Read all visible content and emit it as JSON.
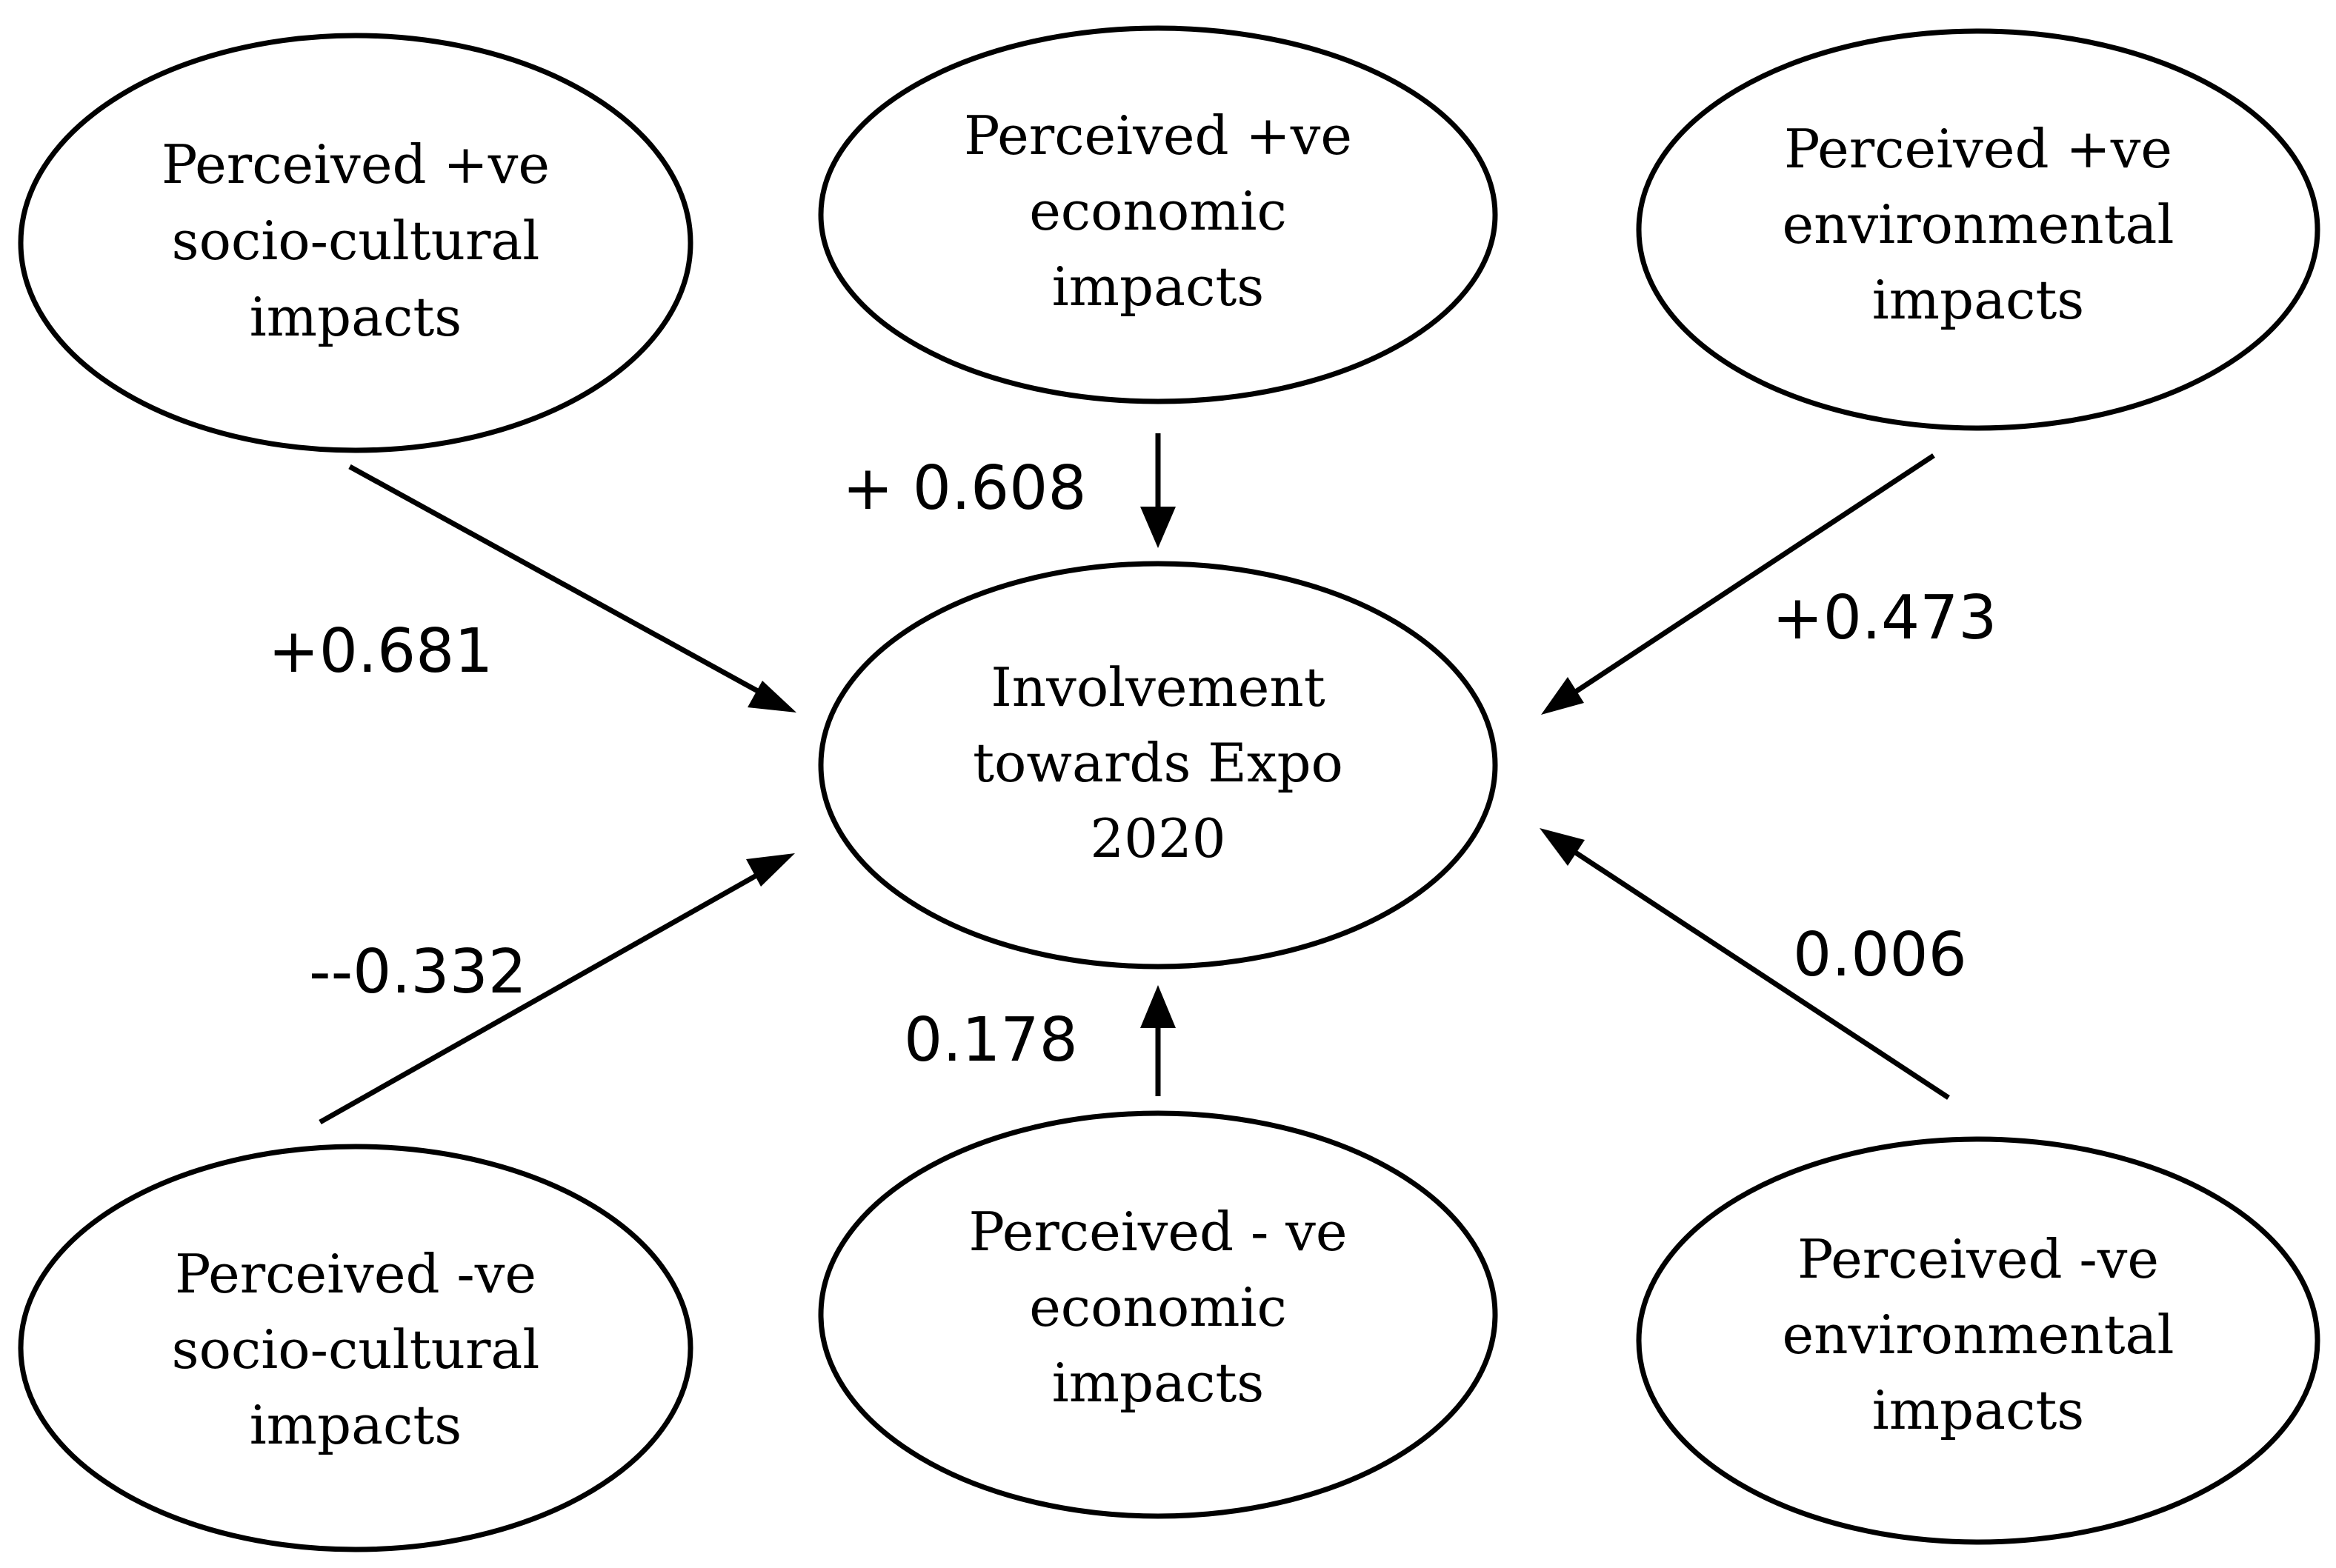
{
  "nodes": {
    "pos_socio": {
      "lines": [
        "Perceived +ve",
        "socio-cultural",
        "impacts"
      ]
    },
    "pos_econ": {
      "lines": [
        "Perceived +ve",
        "economic",
        "impacts"
      ]
    },
    "pos_env": {
      "lines": [
        "Perceived +ve",
        "environmental",
        "impacts"
      ]
    },
    "center": {
      "lines": [
        "Involvement",
        "towards Expo",
        "2020"
      ]
    },
    "neg_socio": {
      "lines": [
        "Perceived -ve",
        "socio-cultural",
        "impacts"
      ]
    },
    "neg_econ": {
      "lines": [
        "Perceived - ve",
        "economic",
        "impacts"
      ]
    },
    "neg_env": {
      "lines": [
        "Perceived -ve",
        "environmental",
        "impacts"
      ]
    }
  },
  "edges": {
    "pos_socio": {
      "label": "+0.681",
      "value": 0.681
    },
    "pos_econ": {
      "label": "+ 0.608",
      "value": 0.608
    },
    "pos_env": {
      "label": "+0.473",
      "value": 0.473
    },
    "neg_socio": {
      "label": "--0.332",
      "value": -0.332
    },
    "neg_econ": {
      "label": "0.178",
      "value": 0.178
    },
    "neg_env": {
      "label": "0.006",
      "value": 0.006
    }
  }
}
